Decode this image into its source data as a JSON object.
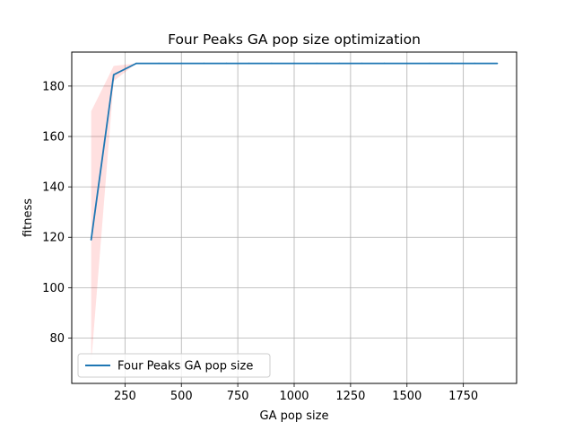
{
  "chart_data": {
    "type": "line",
    "title": "Four Peaks GA pop size optimization",
    "xlabel": "GA pop size",
    "ylabel": "fitness",
    "xlim": [
      14,
      1986
    ],
    "ylim": [
      62,
      193.5
    ],
    "xticks": [
      250,
      500,
      750,
      1000,
      1250,
      1500,
      1750
    ],
    "yticks": [
      80,
      100,
      120,
      140,
      160,
      180
    ],
    "grid": true,
    "legend_position": "lower-left",
    "series": [
      {
        "name": "Four Peaks GA pop size",
        "color": "#1f77b4",
        "x": [
          100,
          200,
          300,
          400,
          500,
          600,
          700,
          800,
          900,
          1000,
          1100,
          1200,
          1300,
          1400,
          1500,
          1600,
          1700,
          1800,
          1900
        ],
        "y": [
          119,
          184.5,
          189,
          189,
          189,
          189,
          189,
          189,
          189,
          189,
          189,
          189,
          189,
          189,
          189,
          189,
          189,
          189,
          189
        ],
        "band_color": "#ff0000",
        "band_lower": [
          70,
          182,
          189,
          189,
          189,
          189,
          189,
          189,
          189,
          189,
          189,
          189,
          189,
          189,
          189,
          189,
          189,
          189,
          189
        ],
        "band_upper": [
          170,
          188,
          189,
          189,
          189,
          189,
          189,
          189,
          189,
          189,
          189,
          189,
          189,
          189,
          189,
          189,
          189,
          189,
          189
        ]
      }
    ]
  }
}
